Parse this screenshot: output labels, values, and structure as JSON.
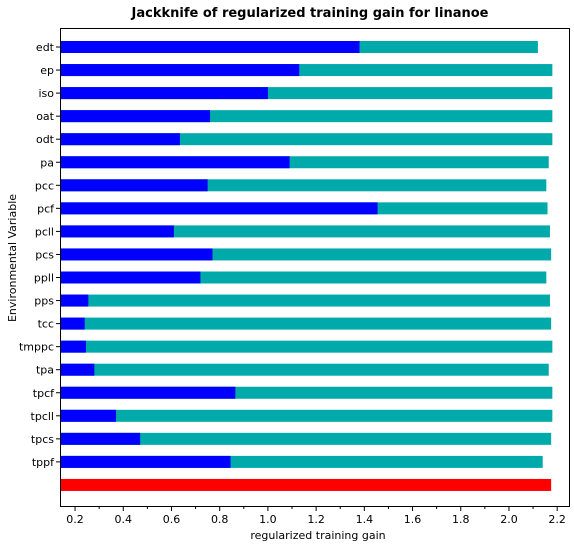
{
  "chart_data": {
    "type": "bar",
    "orientation": "horizontal",
    "title": "Jackknife of regularized training gain for linanoe",
    "xlabel": "regularized training gain",
    "ylabel": "Environmental Variable",
    "xlim": [
      0.15,
      2.22
    ],
    "xticks": [
      0.2,
      0.4,
      0.6,
      0.8,
      1.0,
      1.2,
      1.4,
      1.6,
      1.8,
      2.0,
      2.2
    ],
    "xtick_labels": [
      "0.2",
      "0.4",
      "0.6",
      "0.8",
      "1.0",
      "1.2",
      "1.4",
      "1.6",
      "1.8",
      "2.0",
      "2.2"
    ],
    "grid": false,
    "legend": "none",
    "categories": [
      "edt",
      "ep",
      "iso",
      "oat",
      "odt",
      "pa",
      "pcc",
      "pcf",
      "pcll",
      "pcs",
      "ppll",
      "pps",
      "tcc",
      "tmppc",
      "tpa",
      "tpcf",
      "tpcll",
      "tpcs",
      "tppf"
    ],
    "series": [
      {
        "key": "without_variable",
        "color": "#00aaaa",
        "values": [
          2.12,
          2.18,
          2.18,
          2.18,
          2.18,
          2.165,
          2.155,
          2.16,
          2.17,
          2.175,
          2.155,
          2.17,
          2.175,
          2.18,
          2.165,
          2.18,
          2.18,
          2.175,
          2.14
        ]
      },
      {
        "key": "only_variable",
        "color": "#0000ff",
        "values": [
          1.38,
          1.13,
          1.0,
          0.76,
          0.635,
          1.09,
          0.75,
          1.455,
          0.61,
          0.77,
          0.72,
          0.255,
          0.24,
          0.245,
          0.28,
          0.865,
          0.37,
          0.47,
          0.845
        ]
      }
    ],
    "all_variables": {
      "color": "#ff0000",
      "value": 2.175
    }
  }
}
